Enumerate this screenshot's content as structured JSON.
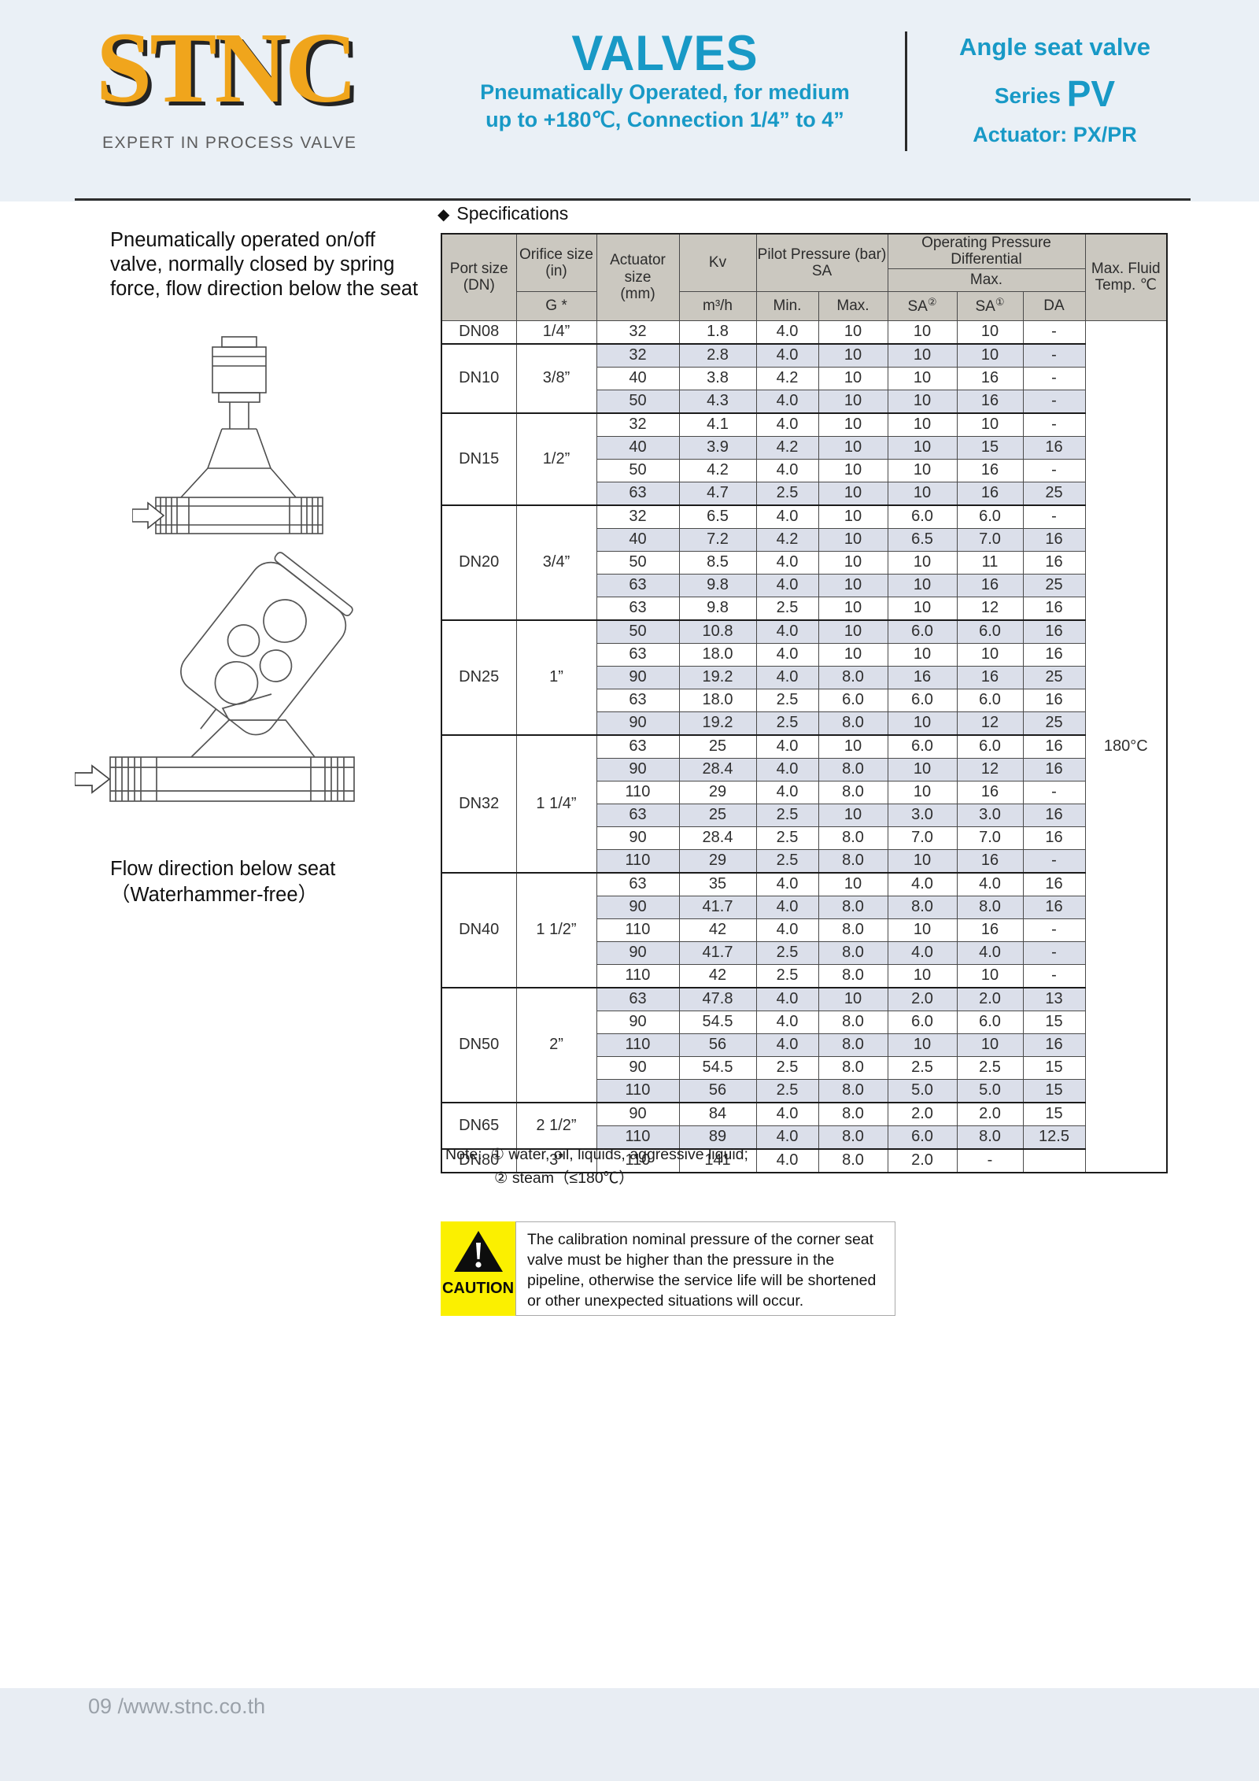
{
  "page": {
    "footer": "09 /www.stnc.co.th"
  },
  "header": {
    "logo": "STNC",
    "logo_tagline": "EXPERT IN PROCESS VALVE",
    "center_title": "VALVES",
    "center_sub1": "Pneumatically Operated, for medium",
    "center_sub2": "up to +180℃, Connection 1/4” to 4”",
    "right_title": "Angle seat valve",
    "right_series_label": "Series",
    "right_series_value": "PV",
    "right_actuator": "Actuator:  PX/PR",
    "accent_color": "#1899c6",
    "logo_color": "#f0a51c"
  },
  "intro": {
    "paragraph": "Pneumatically operated on/off valve, normally closed by spring force, flow direction below the seat",
    "flow_caption_line1": "Flow direction below seat",
    "flow_caption_line2": "（Waterhammer-free）"
  },
  "specifications": {
    "section_title": "Specifications",
    "header": {
      "port": "Port size\n(DN)",
      "orifice": "Orifice size\n(in)",
      "orifice_sub": "G *",
      "actuator": "Actuator size\n(mm)",
      "kv": "Kv",
      "kv_sub": "m³/h",
      "pilot": "Pilot Pressure (bar)\nSA",
      "pilot_min": "Min.",
      "pilot_max": "Max.",
      "opd": "Operating Pressure Differential",
      "opd_max": "Max.",
      "sa2_base": "SA",
      "sa2_sup": "②",
      "sa1_base": "SA",
      "sa1_sup": "①",
      "da": "DA",
      "temp": "Max. Fluid\nTemp. ℃"
    },
    "max_fluid_temp": "180°C",
    "groups": [
      {
        "port": "DN08",
        "orifice": "1/4”",
        "rows": [
          [
            "32",
            "1.8",
            "4.0",
            "10",
            "10",
            "10",
            "-"
          ]
        ]
      },
      {
        "port": "DN10",
        "orifice": "3/8”",
        "rows": [
          [
            "32",
            "2.8",
            "4.0",
            "10",
            "10",
            "10",
            "-"
          ],
          [
            "40",
            "3.8",
            "4.2",
            "10",
            "10",
            "16",
            "-"
          ],
          [
            "50",
            "4.3",
            "4.0",
            "10",
            "10",
            "16",
            "-"
          ]
        ]
      },
      {
        "port": "DN15",
        "orifice": "1/2”",
        "rows": [
          [
            "32",
            "4.1",
            "4.0",
            "10",
            "10",
            "10",
            "-"
          ],
          [
            "40",
            "3.9",
            "4.2",
            "10",
            "10",
            "15",
            "16"
          ],
          [
            "50",
            "4.2",
            "4.0",
            "10",
            "10",
            "16",
            "-"
          ],
          [
            "63",
            "4.7",
            "2.5",
            "10",
            "10",
            "16",
            "25"
          ]
        ]
      },
      {
        "port": "DN20",
        "orifice": "3/4”",
        "rows": [
          [
            "32",
            "6.5",
            "4.0",
            "10",
            "6.0",
            "6.0",
            "-"
          ],
          [
            "40",
            "7.2",
            "4.2",
            "10",
            "6.5",
            "7.0",
            "16"
          ],
          [
            "50",
            "8.5",
            "4.0",
            "10",
            "10",
            "11",
            "16"
          ],
          [
            "63",
            "9.8",
            "4.0",
            "10",
            "10",
            "16",
            "25"
          ],
          [
            "63",
            "9.8",
            "2.5",
            "10",
            "10",
            "12",
            "16"
          ]
        ]
      },
      {
        "port": "DN25",
        "orifice": "1”",
        "rows": [
          [
            "50",
            "10.8",
            "4.0",
            "10",
            "6.0",
            "6.0",
            "16"
          ],
          [
            "63",
            "18.0",
            "4.0",
            "10",
            "10",
            "10",
            "16"
          ],
          [
            "90",
            "19.2",
            "4.0",
            "8.0",
            "16",
            "16",
            "25"
          ],
          [
            "63",
            "18.0",
            "2.5",
            "6.0",
            "6.0",
            "6.0",
            "16"
          ],
          [
            "90",
            "19.2",
            "2.5",
            "8.0",
            "10",
            "12",
            "25"
          ]
        ]
      },
      {
        "port": "DN32",
        "orifice": "1 1/4”",
        "rows": [
          [
            "63",
            "25",
            "4.0",
            "10",
            "6.0",
            "6.0",
            "16"
          ],
          [
            "90",
            "28.4",
            "4.0",
            "8.0",
            "10",
            "12",
            "16"
          ],
          [
            "110",
            "29",
            "4.0",
            "8.0",
            "10",
            "16",
            "-"
          ],
          [
            "63",
            "25",
            "2.5",
            "10",
            "3.0",
            "3.0",
            "16"
          ],
          [
            "90",
            "28.4",
            "2.5",
            "8.0",
            "7.0",
            "7.0",
            "16"
          ],
          [
            "110",
            "29",
            "2.5",
            "8.0",
            "10",
            "16",
            "-"
          ]
        ]
      },
      {
        "port": "DN40",
        "orifice": "1 1/2”",
        "rows": [
          [
            "63",
            "35",
            "4.0",
            "10",
            "4.0",
            "4.0",
            "16"
          ],
          [
            "90",
            "41.7",
            "4.0",
            "8.0",
            "8.0",
            "8.0",
            "16"
          ],
          [
            "110",
            "42",
            "4.0",
            "8.0",
            "10",
            "16",
            "-"
          ],
          [
            "90",
            "41.7",
            "2.5",
            "8.0",
            "4.0",
            "4.0",
            "-"
          ],
          [
            "110",
            "42",
            "2.5",
            "8.0",
            "10",
            "10",
            "-"
          ]
        ]
      },
      {
        "port": "DN50",
        "orifice": "2”",
        "rows": [
          [
            "63",
            "47.8",
            "4.0",
            "10",
            "2.0",
            "2.0",
            "13"
          ],
          [
            "90",
            "54.5",
            "4.0",
            "8.0",
            "6.0",
            "6.0",
            "15"
          ],
          [
            "110",
            "56",
            "4.0",
            "8.0",
            "10",
            "10",
            "16"
          ],
          [
            "90",
            "54.5",
            "2.5",
            "8.0",
            "2.5",
            "2.5",
            "15"
          ],
          [
            "110",
            "56",
            "2.5",
            "8.0",
            "5.0",
            "5.0",
            "15"
          ]
        ]
      },
      {
        "port": "DN65",
        "orifice": "2 1/2”",
        "rows": [
          [
            "90",
            "84",
            "4.0",
            "8.0",
            "2.0",
            "2.0",
            "15"
          ],
          [
            "110",
            "89",
            "4.0",
            "8.0",
            "6.0",
            "8.0",
            "12.5"
          ]
        ]
      },
      {
        "port": "DN80",
        "orifice": "3”",
        "rows": [
          [
            "110",
            "141",
            "4.0",
            "8.0",
            "2.0",
            "-",
            ""
          ]
        ]
      }
    ]
  },
  "note": {
    "label": "Note:",
    "line1": "① water, oil, liquids, aggressive liquid;",
    "line2": "② steam（≤180℃）"
  },
  "caution": {
    "label": "CAUTION",
    "text": "The calibration nominal pressure of the corner seat valve must be higher than the pressure in the pipeline, otherwise the service life will be shortened or other unexpected situations will occur."
  }
}
